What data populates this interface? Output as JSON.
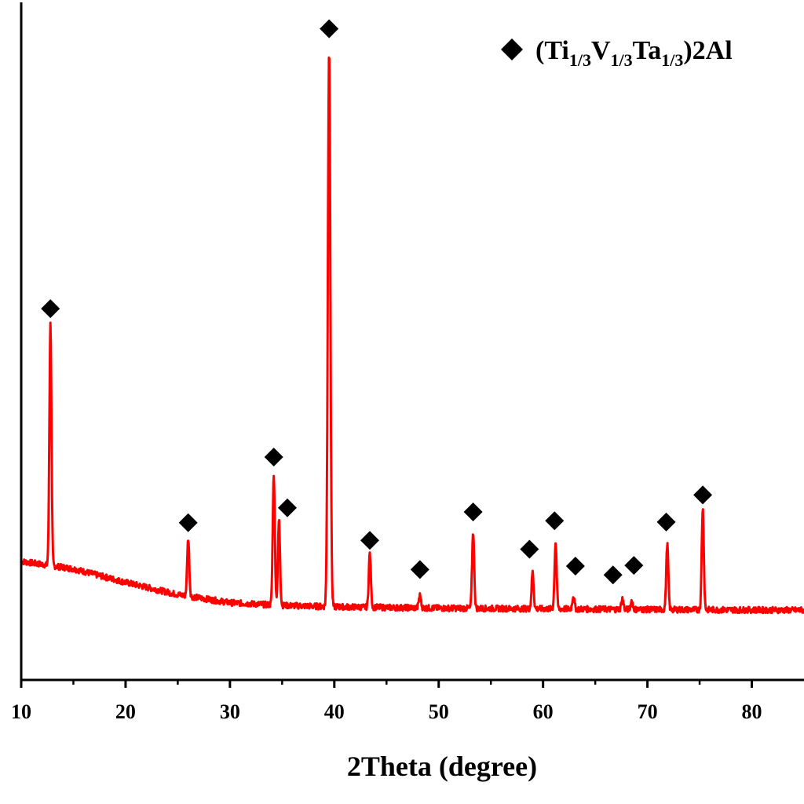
{
  "chart_data": {
    "type": "line",
    "xlabel": "2Theta (degree)",
    "ylabel": "",
    "xlim": [
      10,
      85
    ],
    "x_ticks": [
      10,
      20,
      30,
      40,
      50,
      60,
      70,
      80
    ],
    "tick_labels": [
      "10",
      "20",
      "30",
      "40",
      "50",
      "60",
      "70",
      "80"
    ],
    "y_ticks_shown": false,
    "ylim": [
      0,
      100
    ],
    "grid": false,
    "colors": {
      "series": "#ff0000",
      "marker": "#000000",
      "axis": "#000000"
    },
    "legend": {
      "position": "top-right",
      "marker": "diamond",
      "text_parts": [
        {
          "t": "(Ti",
          "sub": false
        },
        {
          "t": "1/3",
          "sub": true
        },
        {
          "t": "V",
          "sub": false
        },
        {
          "t": "1/3",
          "sub": true
        },
        {
          "t": "Ta",
          "sub": false
        },
        {
          "t": "1/3",
          "sub": true
        },
        {
          "t": ")2Al",
          "sub": false
        }
      ]
    },
    "series": [
      {
        "name": "(Ti1/3V1/3Ta1/3)2Al",
        "baseline": [
          [
            10,
            17.5
          ],
          [
            15,
            16.4
          ],
          [
            20,
            14.4
          ],
          [
            25,
            12.6
          ],
          [
            30,
            11.4
          ],
          [
            35,
            11.0
          ],
          [
            40,
            10.8
          ],
          [
            50,
            10.6
          ],
          [
            60,
            10.5
          ],
          [
            70,
            10.4
          ],
          [
            85,
            10.3
          ]
        ],
        "peaks": [
          {
            "x": 12.8,
            "y": 52.5,
            "marked": true
          },
          {
            "x": 26.0,
            "y": 20.9,
            "marked": true
          },
          {
            "x": 34.2,
            "y": 30.4,
            "marked": true
          },
          {
            "x": 34.7,
            "y": 23.6,
            "marked": true
          },
          {
            "x": 39.5,
            "y": 93.3,
            "marked": true
          },
          {
            "x": 43.4,
            "y": 18.7,
            "marked": true
          },
          {
            "x": 48.2,
            "y": 12.5,
            "marked": true
          },
          {
            "x": 53.3,
            "y": 21.9,
            "marked": true
          },
          {
            "x": 59.0,
            "y": 15.9,
            "marked": true
          },
          {
            "x": 61.2,
            "y": 20.3,
            "marked": true
          },
          {
            "x": 62.9,
            "y": 12.4,
            "marked": true
          },
          {
            "x": 67.6,
            "y": 12.0,
            "marked": true
          },
          {
            "x": 68.5,
            "y": 11.7,
            "marked": true
          },
          {
            "x": 71.9,
            "y": 20.0,
            "marked": true
          },
          {
            "x": 75.3,
            "y": 25.3,
            "marked": true
          }
        ]
      }
    ],
    "annotations": [
      {
        "marker": "diamond",
        "x": 12.8,
        "y": 54.8
      },
      {
        "marker": "diamond",
        "x": 26.0,
        "y": 23.2
      },
      {
        "marker": "diamond",
        "x": 34.2,
        "y": 32.9
      },
      {
        "marker": "diamond",
        "x": 35.5,
        "y": 25.4
      },
      {
        "marker": "diamond",
        "x": 39.5,
        "y": 96.1
      },
      {
        "marker": "diamond",
        "x": 43.4,
        "y": 20.6
      },
      {
        "marker": "diamond",
        "x": 48.2,
        "y": 16.3
      },
      {
        "marker": "diamond",
        "x": 53.3,
        "y": 24.8
      },
      {
        "marker": "diamond",
        "x": 58.7,
        "y": 19.3
      },
      {
        "marker": "diamond",
        "x": 61.1,
        "y": 23.5
      },
      {
        "marker": "diamond",
        "x": 63.1,
        "y": 16.8
      },
      {
        "marker": "diamond",
        "x": 66.7,
        "y": 15.5
      },
      {
        "marker": "diamond",
        "x": 68.7,
        "y": 16.9
      },
      {
        "marker": "diamond",
        "x": 71.8,
        "y": 23.3
      },
      {
        "marker": "diamond",
        "x": 75.3,
        "y": 27.3
      }
    ]
  }
}
